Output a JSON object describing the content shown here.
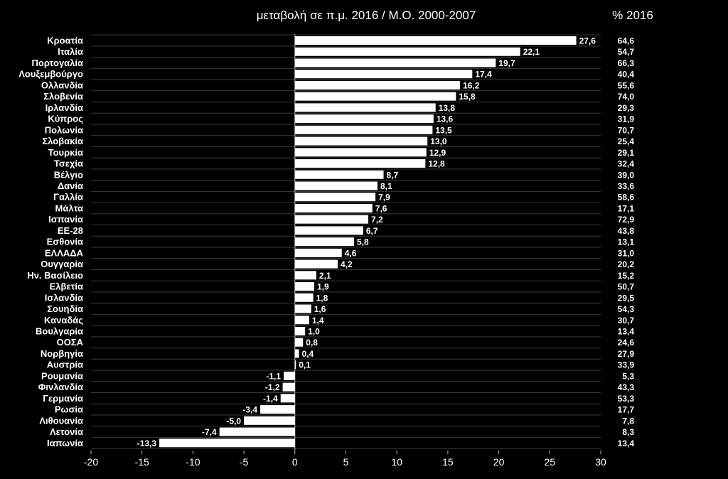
{
  "chart_data": {
    "type": "bar",
    "orientation": "horizontal",
    "title": "μεταβολή σε π.μ. 2016 / Μ.Ο. 2000-2007",
    "secondary_column_title": "% 2016",
    "xlim": [
      -20,
      30
    ],
    "x_ticks": [
      -20,
      -15,
      -10,
      -5,
      0,
      5,
      10,
      15,
      20,
      25,
      30
    ],
    "grid": true,
    "bar_color": "#ffffff",
    "categories": [
      "Κροατία",
      "Ιταλία",
      "Πορτογαλία",
      "Λουξεμβούργο",
      "Ολλανδία",
      "Σλοβενία",
      "Ιρλανδία",
      "Κύπρος",
      "Πολωνία",
      "Σλοβακία",
      "Τουρκία",
      "Τσεχία",
      "Βέλγιο",
      "Δανία",
      "Γαλλία",
      "Μάλτα",
      "Ισπανία",
      "ΕΕ-28",
      "Εσθονία",
      "ΕΛΛΑΔΑ",
      "Ουγγαρία",
      "Ην. Βασίλειο",
      "Ελβετία",
      "Ισλανδία",
      "Σουηδία",
      "Καναδάς",
      "Βουλγαρία",
      "ΟΟΣΑ",
      "Νορβηγία",
      "Αυστρία",
      "Ρουμανία",
      "Φινλανδία",
      "Γερμανία",
      "Ρωσία",
      "Λιθουανία",
      "Λετονία",
      "Ιαπωνία"
    ],
    "values": [
      27.6,
      22.1,
      19.7,
      17.4,
      16.2,
      15.8,
      13.8,
      13.6,
      13.5,
      13.0,
      12.9,
      12.8,
      8.7,
      8.1,
      7.9,
      7.6,
      7.2,
      6.7,
      5.8,
      4.6,
      4.2,
      2.1,
      1.9,
      1.8,
      1.6,
      1.4,
      1.0,
      0.8,
      0.4,
      0.1,
      -1.1,
      -1.2,
      -1.4,
      -3.4,
      -5.0,
      -7.4,
      -13.3
    ],
    "value_labels": [
      "27,6",
      "22,1",
      "19,7",
      "17,4",
      "16,2",
      "15,8",
      "13,8",
      "13,6",
      "13,5",
      "13,0",
      "12,9",
      "12,8",
      "8,7",
      "8,1",
      "7,9",
      "7,6",
      "7,2",
      "6,7",
      "5,8",
      "4,6",
      "4,2",
      "2,1",
      "1,9",
      "1,8",
      "1,6",
      "1,4",
      "1,0",
      "0,8",
      "0,4",
      "0,1",
      "-1,1",
      "-1,2",
      "-1,4",
      "-3,4",
      "-5,0",
      "-7,4",
      "-13,3"
    ],
    "percent_2016": [
      "64,6",
      "54,7",
      "66,3",
      "40,4",
      "55,6",
      "74,0",
      "29,3",
      "31,9",
      "70,7",
      "25,4",
      "29,1",
      "32,4",
      "39,0",
      "33,6",
      "58,6",
      "17,1",
      "72,9",
      "43,8",
      "13,1",
      "31,0",
      "20,2",
      "15,2",
      "50,7",
      "29,5",
      "54,3",
      "30,7",
      "13,4",
      "24,6",
      "27,9",
      "33,9",
      "5,3",
      "43,3",
      "53,3",
      "17,7",
      "7,8",
      "8,3",
      "13,4"
    ]
  }
}
